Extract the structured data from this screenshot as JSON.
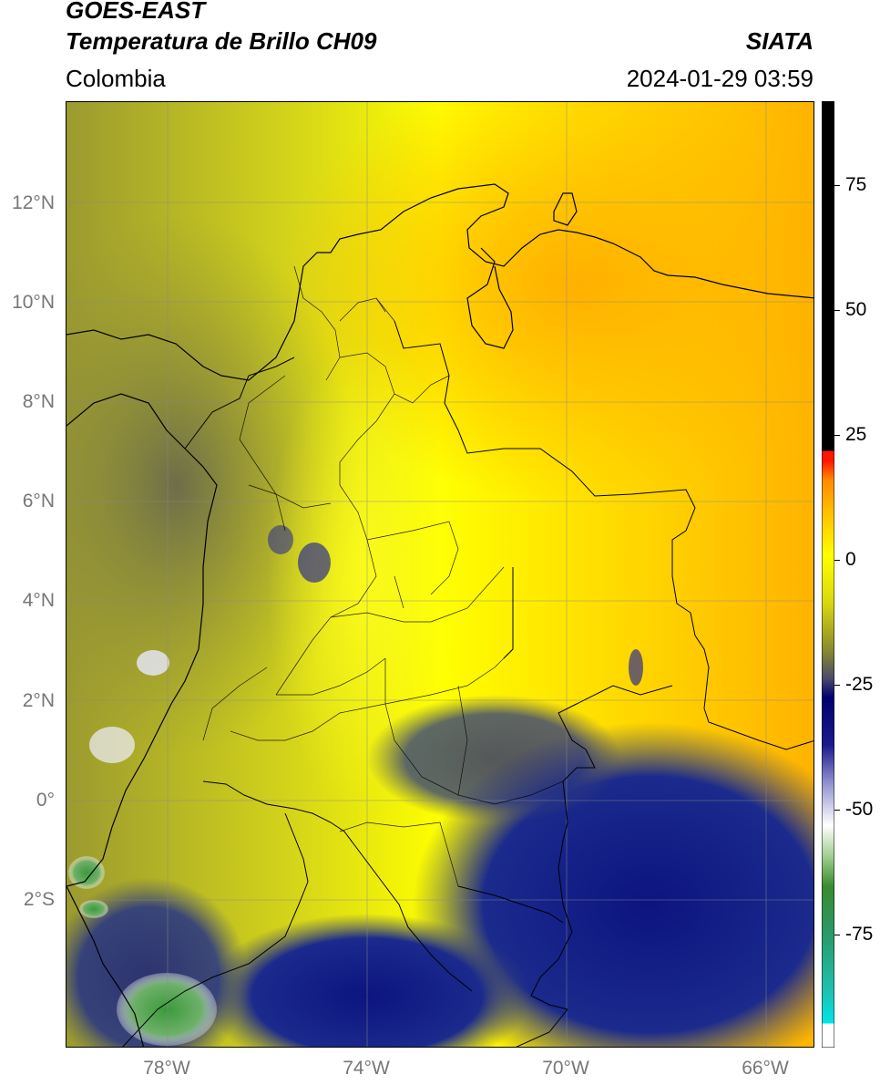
{
  "header": {
    "satellite": "GOES-EAST",
    "product": "Temperatura de Brillo CH09",
    "brand": "SIATA",
    "region": "Colombia",
    "timestamp": "2024-01-29 03:59"
  },
  "axes": {
    "lat_labels": [
      "12°N",
      "10°N",
      "8°N",
      "6°N",
      "4°N",
      "2°N",
      "0°",
      "2°S"
    ],
    "lon_labels": [
      "78°W",
      "74°W",
      "70°W",
      "66°W"
    ]
  },
  "colorbar": {
    "labels": [
      "75",
      "50",
      "25",
      "0",
      "-25",
      "-50",
      "-75"
    ],
    "colors": {
      "green": "#3e9a3c",
      "cyan": "#18d6d0",
      "white": "#ffffff",
      "navy": "#0d1a86",
      "olive": "#8a8a2a",
      "yellow": "#ffff00",
      "orange": "#ffb400",
      "red": "#ff1a00",
      "black": "#000000"
    }
  }
}
